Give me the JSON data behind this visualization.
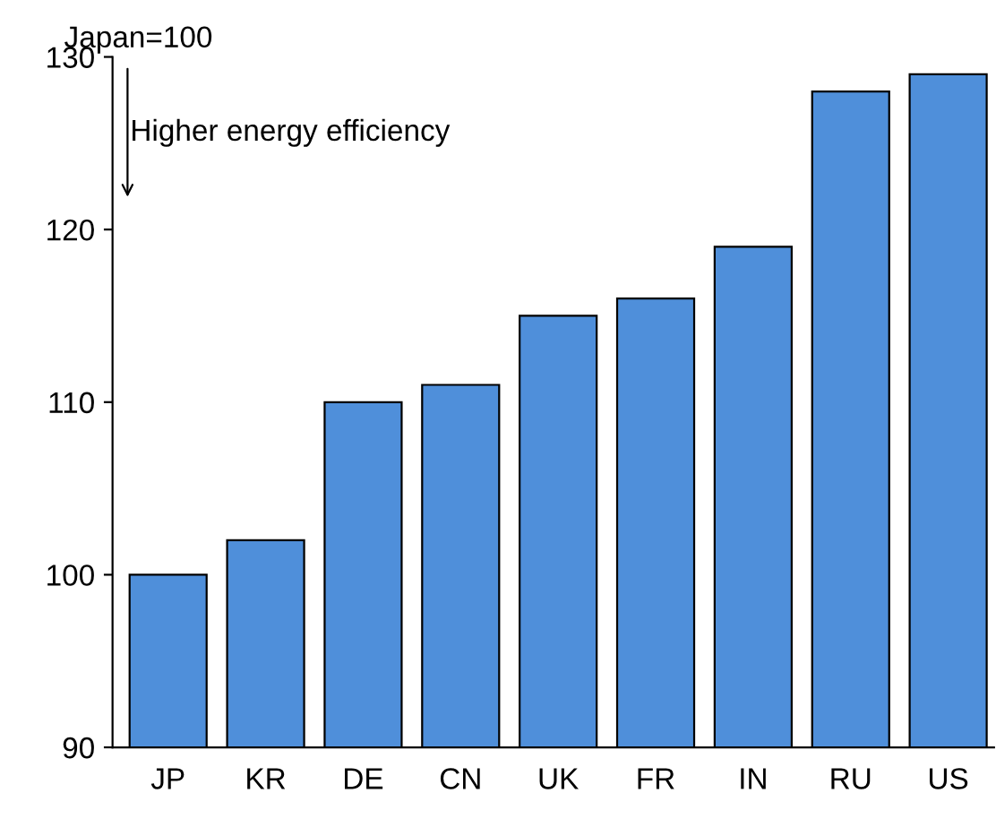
{
  "chart_data": {
    "type": "bar",
    "ylabel": "Japan=100",
    "annotations": [
      "Higher energy efficiency"
    ],
    "categories": [
      "JP",
      "KR",
      "DE",
      "CN",
      "UK",
      "FR",
      "IN",
      "RU",
      "US"
    ],
    "values": [
      100,
      102,
      110,
      111,
      115,
      116,
      119,
      128,
      129
    ],
    "color": "#4f8fda",
    "ylim": [
      90,
      130
    ],
    "yticks": [
      90,
      100,
      110,
      120,
      130
    ],
    "grid": false,
    "legend": false
  }
}
